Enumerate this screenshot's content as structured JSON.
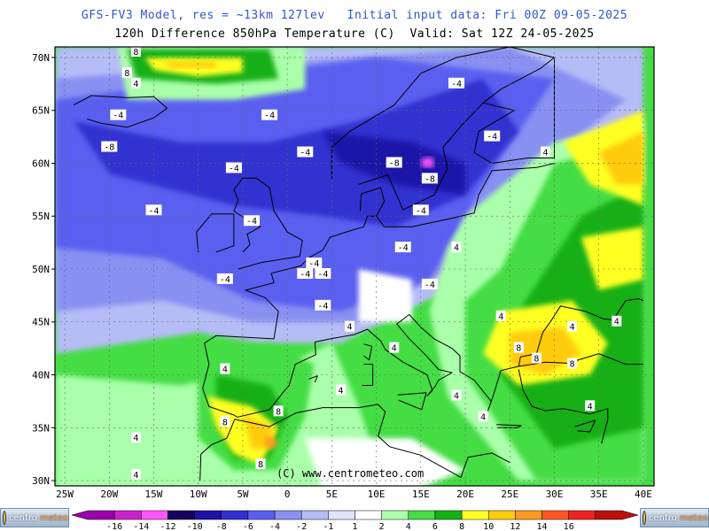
{
  "header": {
    "line1": "GFS-FV3 Model, res = ~13km 127lev   Initial input data: Fri 00Z 09-05-2025",
    "line2": "120h Difference 850hPa Temperature (C)  Valid: Sat 12Z 24-05-2025"
  },
  "map": {
    "lat_labels": [
      "70N",
      "65N",
      "60N",
      "55N",
      "50N",
      "45N",
      "40N",
      "35N",
      "30N"
    ],
    "lat_values": [
      70,
      65,
      60,
      55,
      50,
      45,
      40,
      35,
      30
    ],
    "lon_labels": [
      "25W",
      "20W",
      "15W",
      "10W",
      "5W",
      "0",
      "5E",
      "10E",
      "15E",
      "20E",
      "25E",
      "30E",
      "35E",
      "40E"
    ],
    "lon_values": [
      -25,
      -20,
      -15,
      -10,
      -5,
      0,
      5,
      10,
      15,
      20,
      25,
      30,
      35,
      40
    ],
    "watermark": "(C) www.centrometeo.com",
    "contour_labels": [
      {
        "text": "8",
        "lon": -17,
        "lat": 70.5
      },
      {
        "text": "8",
        "lon": -18,
        "lat": 68.5
      },
      {
        "text": "4",
        "lon": -17,
        "lat": 67.5
      },
      {
        "text": "-4",
        "lon": -19,
        "lat": 64.5
      },
      {
        "text": "-4",
        "lon": -2,
        "lat": 64.5
      },
      {
        "text": "-8",
        "lon": -20,
        "lat": 61.5
      },
      {
        "text": "-4",
        "lon": -6,
        "lat": 59.5
      },
      {
        "text": "-4",
        "lon": 2,
        "lat": 61
      },
      {
        "text": "-8",
        "lon": 12,
        "lat": 60
      },
      {
        "text": "-8",
        "lon": 16,
        "lat": 58.5
      },
      {
        "text": "-4",
        "lon": 19,
        "lat": 67.5
      },
      {
        "text": "-4",
        "lon": 23,
        "lat": 62.5
      },
      {
        "text": "4",
        "lon": 29,
        "lat": 61
      },
      {
        "text": "-4",
        "lon": -15,
        "lat": 55.5
      },
      {
        "text": "-4",
        "lon": -4,
        "lat": 54.5
      },
      {
        "text": "-4",
        "lon": 15,
        "lat": 55.5
      },
      {
        "text": "-4",
        "lon": 13,
        "lat": 52
      },
      {
        "text": "-4",
        "lon": 3,
        "lat": 50.5
      },
      {
        "text": "-4",
        "lon": 4,
        "lat": 49.5
      },
      {
        "text": "-4",
        "lon": -7,
        "lat": 49
      },
      {
        "text": "-4",
        "lon": 2,
        "lat": 49.5
      },
      {
        "text": "-4",
        "lon": 4,
        "lat": 46.5
      },
      {
        "text": "-4",
        "lon": 16,
        "lat": 48.5
      },
      {
        "text": "4",
        "lon": 19,
        "lat": 52
      },
      {
        "text": "4",
        "lon": 7,
        "lat": 44.5
      },
      {
        "text": "4",
        "lon": 24,
        "lat": 45.5
      },
      {
        "text": "4",
        "lon": 37,
        "lat": 45
      },
      {
        "text": "4",
        "lon": 32,
        "lat": 44.5
      },
      {
        "text": "4",
        "lon": -7,
        "lat": 40.5
      },
      {
        "text": "4",
        "lon": 6,
        "lat": 38.5
      },
      {
        "text": "4",
        "lon": 12,
        "lat": 42.5
      },
      {
        "text": "8",
        "lon": 26,
        "lat": 42.5
      },
      {
        "text": "8",
        "lon": 28,
        "lat": 41.5
      },
      {
        "text": "8",
        "lon": 32,
        "lat": 41
      },
      {
        "text": "8",
        "lon": -7,
        "lat": 35.5
      },
      {
        "text": "8",
        "lon": -1,
        "lat": 36.5
      },
      {
        "text": "4",
        "lon": -17,
        "lat": 34
      },
      {
        "text": "4",
        "lon": -17,
        "lat": 30.5
      },
      {
        "text": "8",
        "lon": -3,
        "lat": 31.5
      },
      {
        "text": "4",
        "lon": 19,
        "lat": 38
      },
      {
        "text": "4",
        "lon": 22,
        "lat": 36
      },
      {
        "text": "4",
        "lon": 34,
        "lat": 37
      }
    ]
  },
  "legend": {
    "ticks": [
      "-16",
      "-14",
      "-12",
      "-10",
      "-8",
      "-6",
      "-4",
      "-2",
      "-1",
      "1",
      "2",
      "4",
      "6",
      "8",
      "10",
      "12",
      "14",
      "16"
    ],
    "colors": [
      "#9900aa",
      "#cc22cc",
      "#ff55ff",
      "#160060",
      "#1f12a8",
      "#3030d0",
      "#5a5ef0",
      "#8890f2",
      "#b6bcf6",
      "#e0e4fa",
      "#ffffff",
      "#aaffaa",
      "#44dd44",
      "#15b015",
      "#ffff22",
      "#ffcc11",
      "#ff9922",
      "#ff5522",
      "#ee2222",
      "#bb1111"
    ]
  },
  "logos": {
    "text1": "centro",
    "text2": "meteo"
  }
}
